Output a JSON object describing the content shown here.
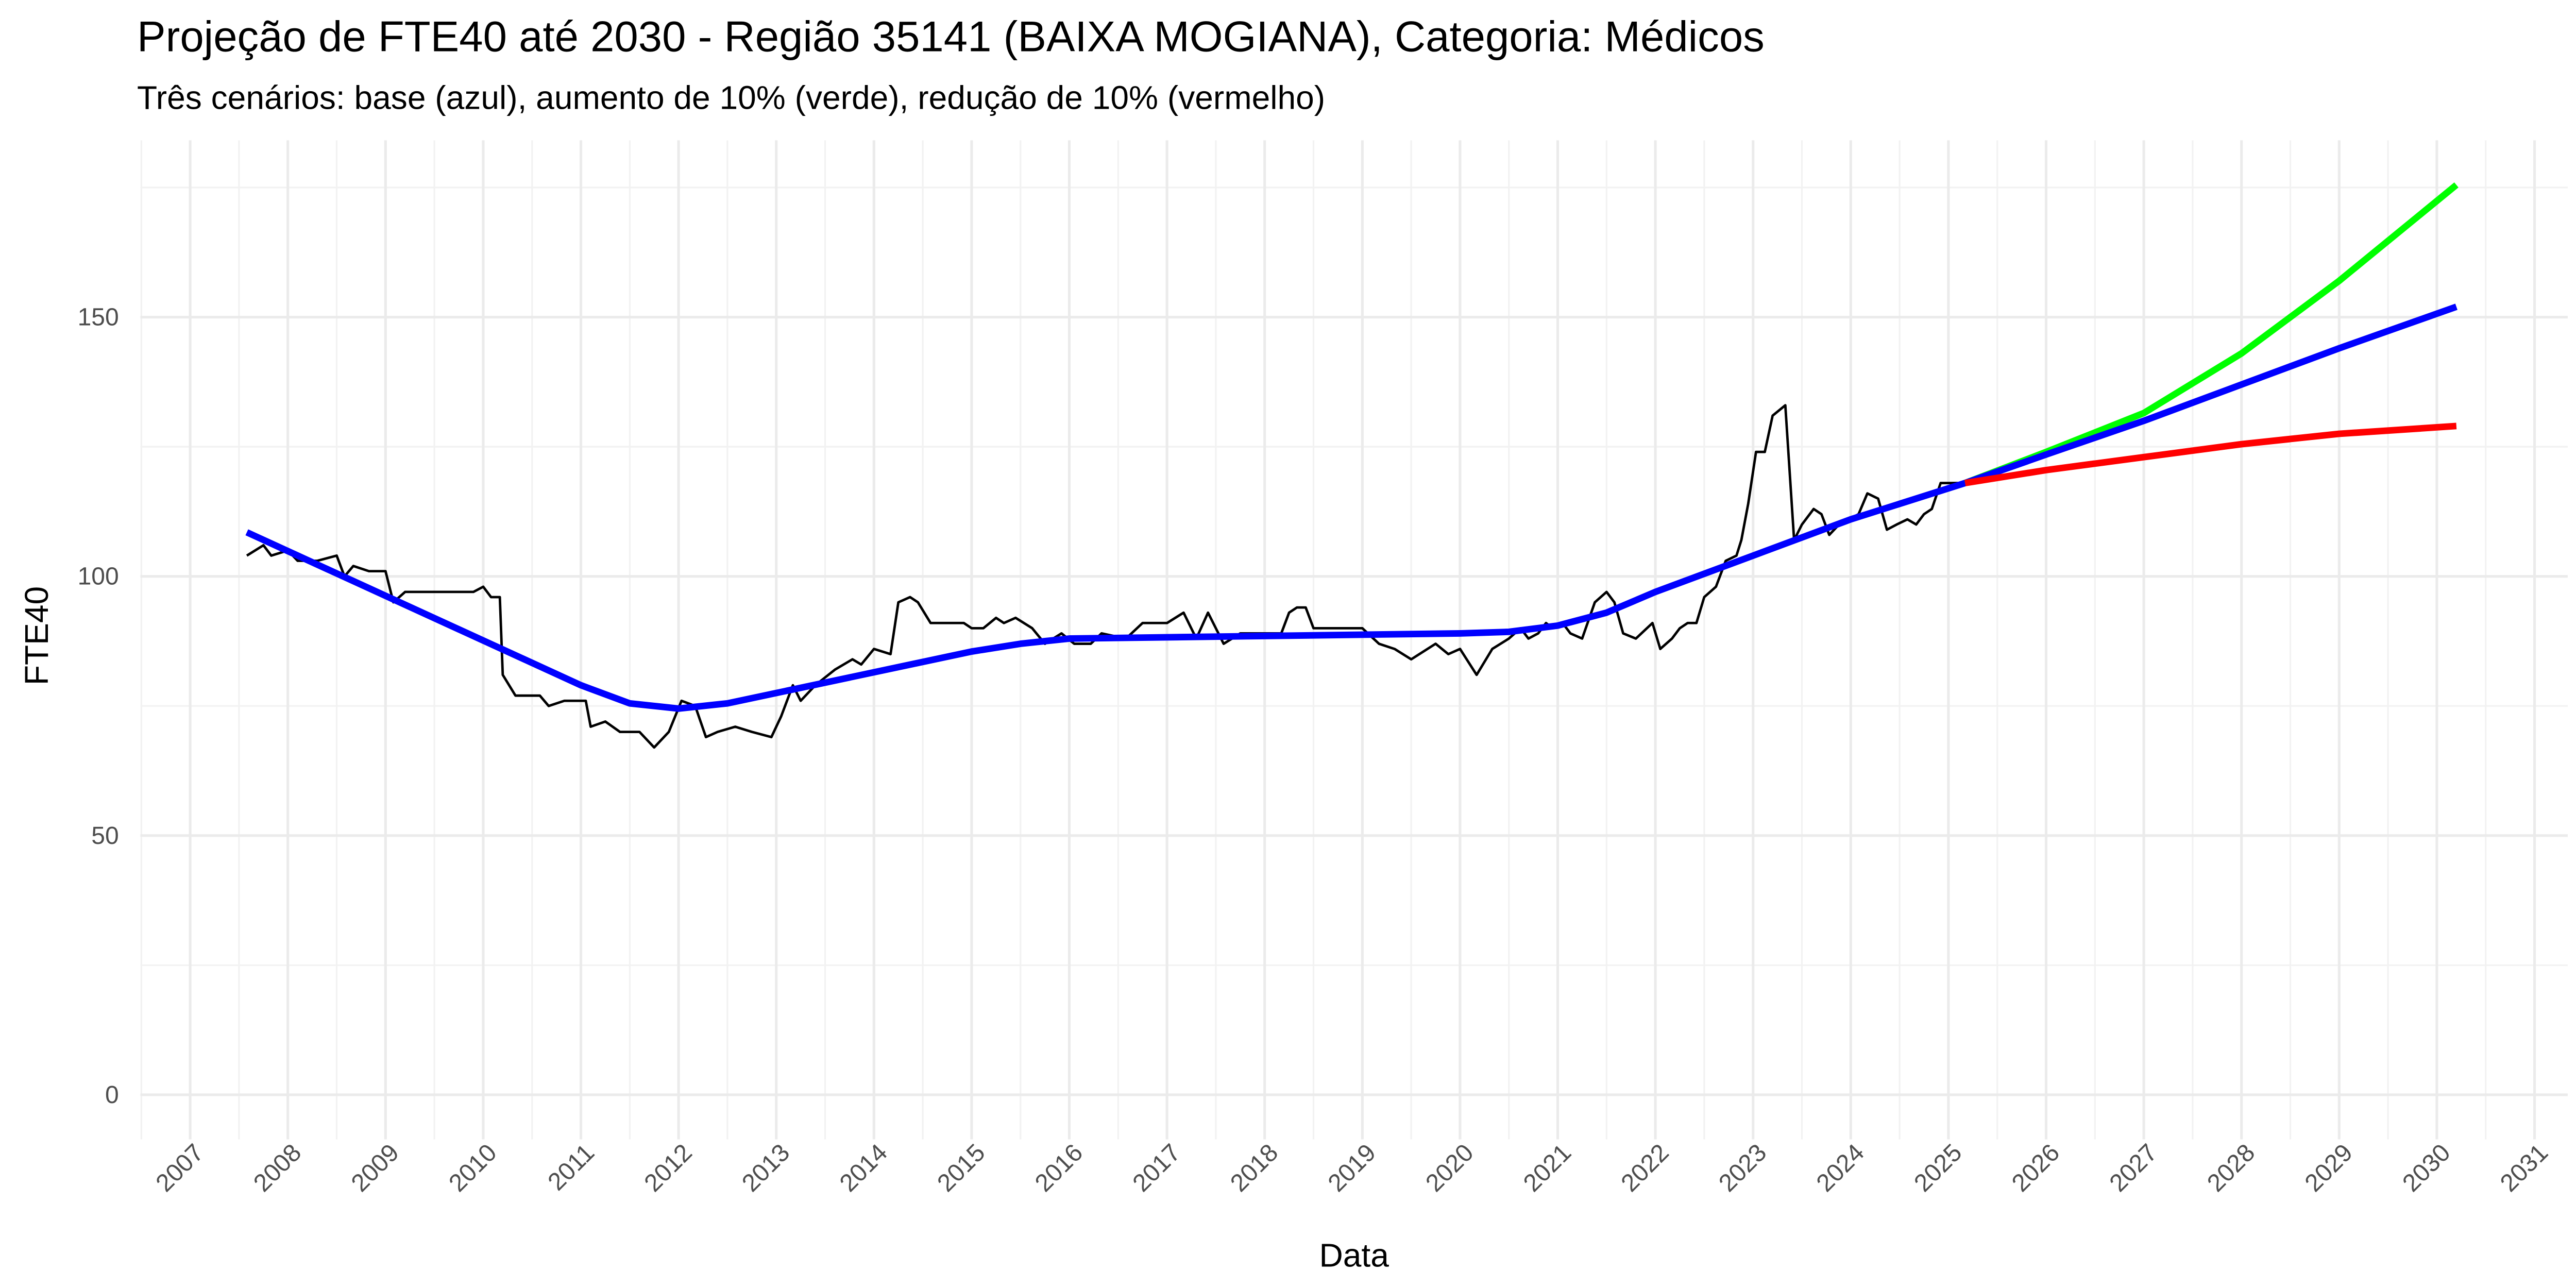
{
  "chart_data": {
    "type": "line",
    "title": "Projeção de FTE40 até 2030 - Região 35141 (BAIXA MOGIANA), Categoria: Médicos",
    "subtitle": "Três cenários: base (azul), aumento de 10% (verde), redução de 10% (vermelho)",
    "x_label": "Data",
    "y_label": "FTE40",
    "xlim": [
      2006.49,
      2031.34
    ],
    "xticks": [
      2007,
      2008,
      2009,
      2010,
      2011,
      2012,
      2013,
      2014,
      2015,
      2016,
      2017,
      2018,
      2019,
      2020,
      2021,
      2022,
      2023,
      2024,
      2025,
      2026,
      2027,
      2028,
      2029,
      2030,
      2031
    ],
    "ylim": [
      -8.6,
      184.1
    ],
    "yticks": [
      0,
      50,
      100,
      150
    ],
    "grid": true,
    "series": [
      {
        "color": "#000000",
        "width": 1.5,
        "x": [
          2007.58,
          2007.75,
          2007.83,
          2008.0,
          2008.1,
          2008.3,
          2008.5,
          2008.58,
          2008.67,
          2008.83,
          2009.0,
          2009.08,
          2009.2,
          2009.9,
          2010.0,
          2010.08,
          2010.17,
          2010.2,
          2010.33,
          2010.58,
          2010.67,
          2010.83,
          2011.05,
          2011.1,
          2011.25,
          2011.4,
          2011.6,
          2011.75,
          2011.9,
          2012.03,
          2012.17,
          2012.28,
          2012.4,
          2012.58,
          2012.75,
          2012.95,
          2013.05,
          2013.17,
          2013.25,
          2013.4,
          2013.6,
          2013.78,
          2013.87,
          2014.0,
          2014.17,
          2014.25,
          2014.37,
          2014.45,
          2014.58,
          2014.92,
          2015.0,
          2015.12,
          2015.25,
          2015.33,
          2015.45,
          2015.62,
          2015.75,
          2015.92,
          2016.05,
          2016.22,
          2016.33,
          2016.58,
          2016.75,
          2017.0,
          2017.17,
          2017.3,
          2017.42,
          2017.58,
          2017.75,
          2018.17,
          2018.25,
          2018.33,
          2018.42,
          2018.5,
          2018.75,
          2019.0,
          2019.17,
          2019.33,
          2019.5,
          2019.75,
          2019.88,
          2020.0,
          2020.17,
          2020.33,
          2020.5,
          2020.62,
          2020.7,
          2020.8,
          2020.88,
          2020.95,
          2021.05,
          2021.13,
          2021.25,
          2021.38,
          2021.5,
          2021.58,
          2021.67,
          2021.8,
          2021.97,
          2022.05,
          2022.17,
          2022.25,
          2022.33,
          2022.42,
          2022.5,
          2022.62,
          2022.72,
          2022.83,
          2022.88,
          2022.95,
          2023.03,
          2023.12,
          2023.2,
          2023.33,
          2023.42,
          2023.5,
          2023.62,
          2023.7,
          2023.78,
          2023.88,
          2024.08,
          2024.17,
          2024.28,
          2024.37,
          2024.47,
          2024.58,
          2024.67,
          2024.75,
          2024.83,
          2024.92,
          2025.17
        ],
        "values": [
          104,
          106,
          104,
          105,
          103,
          103,
          104,
          100,
          102,
          101,
          101,
          95,
          97,
          97,
          98,
          96,
          96,
          81,
          77,
          77,
          75,
          76,
          76,
          71,
          72,
          70,
          70,
          67,
          70,
          76,
          75,
          69,
          70,
          71,
          70,
          69,
          73,
          79,
          76,
          79,
          82,
          84,
          83,
          86,
          85,
          95,
          96,
          95,
          91,
          91,
          90,
          90,
          92,
          91,
          92,
          90,
          87,
          89,
          87,
          87,
          89,
          88,
          91,
          91,
          93,
          88,
          93,
          87,
          89,
          89,
          93,
          94,
          94,
          90,
          90,
          90,
          87,
          86,
          84,
          87,
          85,
          86,
          81,
          86,
          88,
          90,
          88,
          89,
          91,
          90,
          91,
          89,
          88,
          95,
          97,
          95,
          89,
          88,
          91,
          86,
          88,
          90,
          91,
          91,
          96,
          98,
          103,
          104,
          107,
          114,
          124,
          124,
          131,
          133,
          107,
          110,
          113,
          112,
          108,
          110,
          112,
          116,
          115,
          109,
          110,
          111,
          110,
          112,
          113,
          118,
          118
        ]
      },
      {
        "color": "#0000ff",
        "width": 4,
        "x": [
          2007.58,
          2011.0,
          2011.5,
          2012.0,
          2012.5,
          2013.0,
          2014.0,
          2015.0,
          2015.5,
          2016.0,
          2018.0,
          2020.0,
          2020.5,
          2021.0,
          2021.5,
          2022.0,
          2023.0,
          2024.0,
          2025.17
        ],
        "values": [
          108.5,
          79,
          75.5,
          74.5,
          75.5,
          77.5,
          81.5,
          85.5,
          87,
          88,
          88.5,
          89,
          89.3,
          90.5,
          93,
          97,
          104,
          111,
          118
        ]
      },
      {
        "color": "#00ff00",
        "width": 4,
        "x": [
          2025.17,
          2026,
          2027,
          2028,
          2029,
          2030.2
        ],
        "values": [
          118,
          124,
          131.5,
          143,
          157,
          175.5
        ]
      },
      {
        "color": "#0000ff",
        "width": 4,
        "x": [
          2025.17,
          2026,
          2027,
          2028,
          2029,
          2030.2
        ],
        "values": [
          118,
          123.5,
          130,
          137,
          144,
          152
        ]
      },
      {
        "color": "#ff0000",
        "width": 4,
        "x": [
          2025.17,
          2026,
          2027,
          2028,
          2029,
          2030.2
        ],
        "values": [
          118,
          120.5,
          123,
          125.5,
          127.5,
          129
        ]
      }
    ]
  }
}
